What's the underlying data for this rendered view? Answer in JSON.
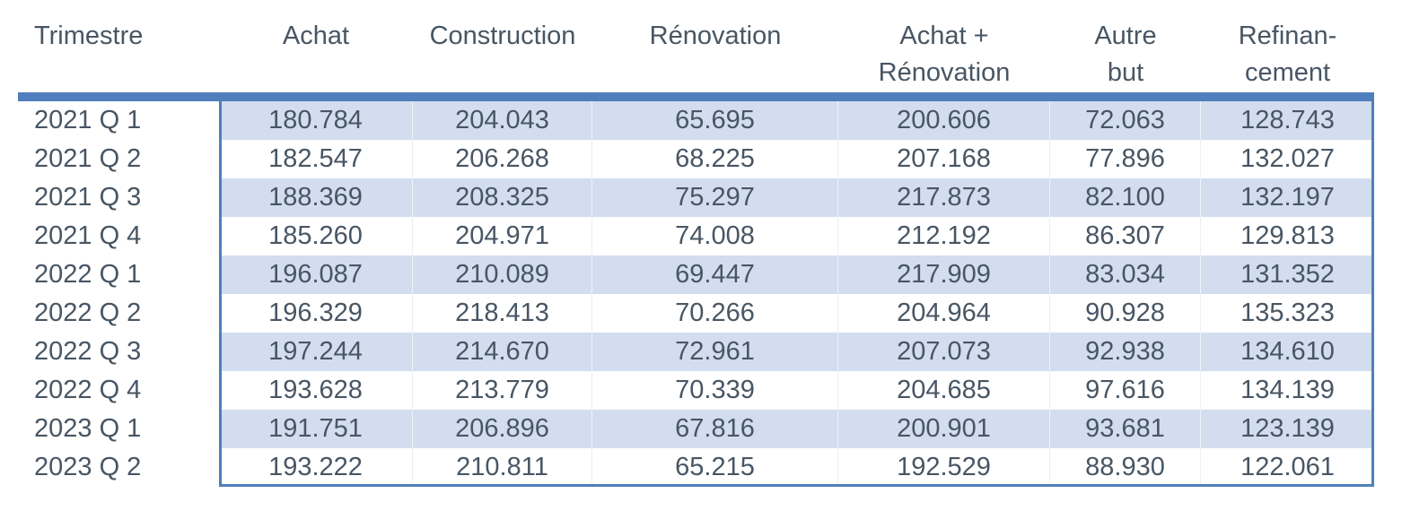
{
  "colors": {
    "accent": "#4f7fbc",
    "stripe": "#d2ddef",
    "text": "#485664",
    "background": "#ffffff"
  },
  "table": {
    "columns": [
      {
        "label": "Trimestre",
        "label2": ""
      },
      {
        "label": "Achat",
        "label2": ""
      },
      {
        "label": "Construction",
        "label2": ""
      },
      {
        "label": "Rénovation",
        "label2": ""
      },
      {
        "label": "Achat +",
        "label2": "Rénovation"
      },
      {
        "label": "Autre",
        "label2": "but"
      },
      {
        "label": "Refinan-",
        "label2": "cement"
      }
    ],
    "rows": [
      [
        "2021 Q 1",
        "180.784",
        "204.043",
        "65.695",
        "200.606",
        "72.063",
        "128.743"
      ],
      [
        "2021 Q 2",
        "182.547",
        "206.268",
        "68.225",
        "207.168",
        "77.896",
        "132.027"
      ],
      [
        "2021 Q 3",
        "188.369",
        "208.325",
        "75.297",
        "217.873",
        "82.100",
        "132.197"
      ],
      [
        "2021 Q 4",
        "185.260",
        "204.971",
        "74.008",
        "212.192",
        "86.307",
        "129.813"
      ],
      [
        "2022 Q 1",
        "196.087",
        "210.089",
        "69.447",
        "217.909",
        "83.034",
        "131.352"
      ],
      [
        "2022 Q 2",
        "196.329",
        "218.413",
        "70.266",
        "204.964",
        "90.928",
        "135.323"
      ],
      [
        "2022 Q 3",
        "197.244",
        "214.670",
        "72.961",
        "207.073",
        "92.938",
        "134.610"
      ],
      [
        "2022 Q 4",
        "193.628",
        "213.779",
        "70.339",
        "204.685",
        "97.616",
        "134.139"
      ],
      [
        "2023 Q 1",
        "191.751",
        "206.896",
        "67.816",
        "200.901",
        "93.681",
        "123.139"
      ],
      [
        "2023 Q 2",
        "193.222",
        "210.811",
        "65.215",
        "192.529",
        "88.930",
        "122.061"
      ]
    ]
  },
  "chart_data": {
    "type": "table",
    "title": "",
    "columns": [
      "Trimestre",
      "Achat",
      "Construction",
      "Rénovation",
      "Achat + Rénovation",
      "Autre but",
      "Refinan-cement"
    ],
    "rows": [
      [
        "2021 Q 1",
        "180.784",
        "204.043",
        "65.695",
        "200.606",
        "72.063",
        "128.743"
      ],
      [
        "2021 Q 2",
        "182.547",
        "206.268",
        "68.225",
        "207.168",
        "77.896",
        "132.027"
      ],
      [
        "2021 Q 3",
        "188.369",
        "208.325",
        "75.297",
        "217.873",
        "82.100",
        "132.197"
      ],
      [
        "2021 Q 4",
        "185.260",
        "204.971",
        "74.008",
        "212.192",
        "86.307",
        "129.813"
      ],
      [
        "2022 Q 1",
        "196.087",
        "210.089",
        "69.447",
        "217.909",
        "83.034",
        "131.352"
      ],
      [
        "2022 Q 2",
        "196.329",
        "218.413",
        "70.266",
        "204.964",
        "90.928",
        "135.323"
      ],
      [
        "2022 Q 3",
        "197.244",
        "214.670",
        "72.961",
        "207.073",
        "92.938",
        "134.610"
      ],
      [
        "2022 Q 4",
        "193.628",
        "213.779",
        "70.339",
        "204.685",
        "97.616",
        "134.139"
      ],
      [
        "2023 Q 1",
        "191.751",
        "206.896",
        "67.816",
        "200.901",
        "93.681",
        "123.139"
      ],
      [
        "2023 Q 2",
        "193.222",
        "210.811",
        "65.215",
        "192.529",
        "88.930",
        "122.061"
      ]
    ],
    "layout_hints": {
      "striped_rows": true,
      "stripe_starts_on_first_data_row": true,
      "data_region_border": true,
      "header_rule_color": "#4f7fbc"
    }
  }
}
